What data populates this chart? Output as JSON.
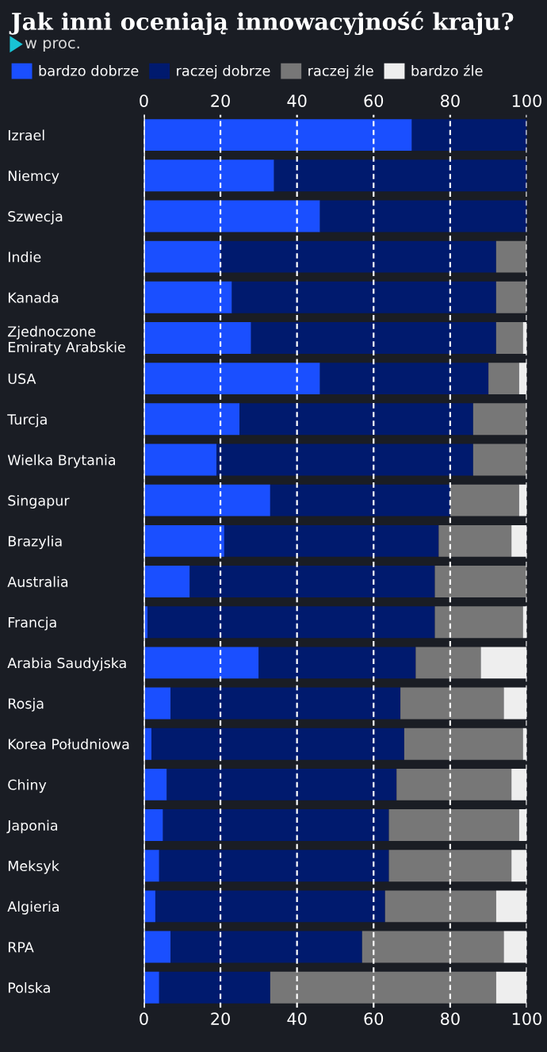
{
  "chart_data": {
    "type": "bar",
    "orientation": "horizontal",
    "stacked": true,
    "title": "Jak inni oceniają innowacyjność kraju?",
    "subtitle": "w proc.",
    "categories": [
      "Izrael",
      "Niemcy",
      "Szwecja",
      "Indie",
      "Kanada",
      "Zjednoczone\nEmiraty Arabskie",
      "USA",
      "Turcja",
      "Wielka Brytania",
      "Singapur",
      "Brazylia",
      "Australia",
      "Francja",
      "Arabia Saudyjska",
      "Rosja",
      "Korea Południowa",
      "Chiny",
      "Japonia",
      "Meksyk",
      "Algieria",
      "RPA",
      "Polska"
    ],
    "series": [
      {
        "name": "bardzo dobrze",
        "color": "#1a4fff",
        "values": [
          70,
          34,
          46,
          20,
          23,
          28,
          46,
          25,
          19,
          33,
          21,
          12,
          1,
          30,
          7,
          2,
          6,
          5,
          4,
          3,
          7,
          4
        ]
      },
      {
        "name": "raczej dobrze",
        "color": "#001a6e",
        "values": [
          30,
          66,
          54,
          72,
          69,
          64,
          44,
          61,
          67,
          47,
          56,
          64,
          75,
          41,
          60,
          66,
          60,
          59,
          60,
          60,
          50,
          29
        ]
      },
      {
        "name": "raczej źle",
        "color": "#777777",
        "values": [
          0,
          0,
          0,
          8,
          8,
          7,
          8,
          14,
          14,
          18,
          19,
          24,
          23,
          17,
          27,
          31,
          30,
          34,
          32,
          29,
          37,
          59
        ]
      },
      {
        "name": "bardzo źle",
        "color": "#eeeeee",
        "values": [
          0,
          0,
          0,
          0,
          0,
          1,
          2,
          0,
          0,
          2,
          4,
          0,
          1,
          12,
          6,
          1,
          4,
          2,
          4,
          8,
          6,
          8
        ]
      }
    ],
    "xlim": [
      0,
      100
    ],
    "xticks": [
      0,
      20,
      40,
      60,
      80,
      100
    ],
    "x2lim": [
      0,
      100
    ],
    "x2ticks": [
      0,
      20,
      40,
      60,
      80,
      100
    ],
    "grid": "x",
    "legend": "top"
  }
}
